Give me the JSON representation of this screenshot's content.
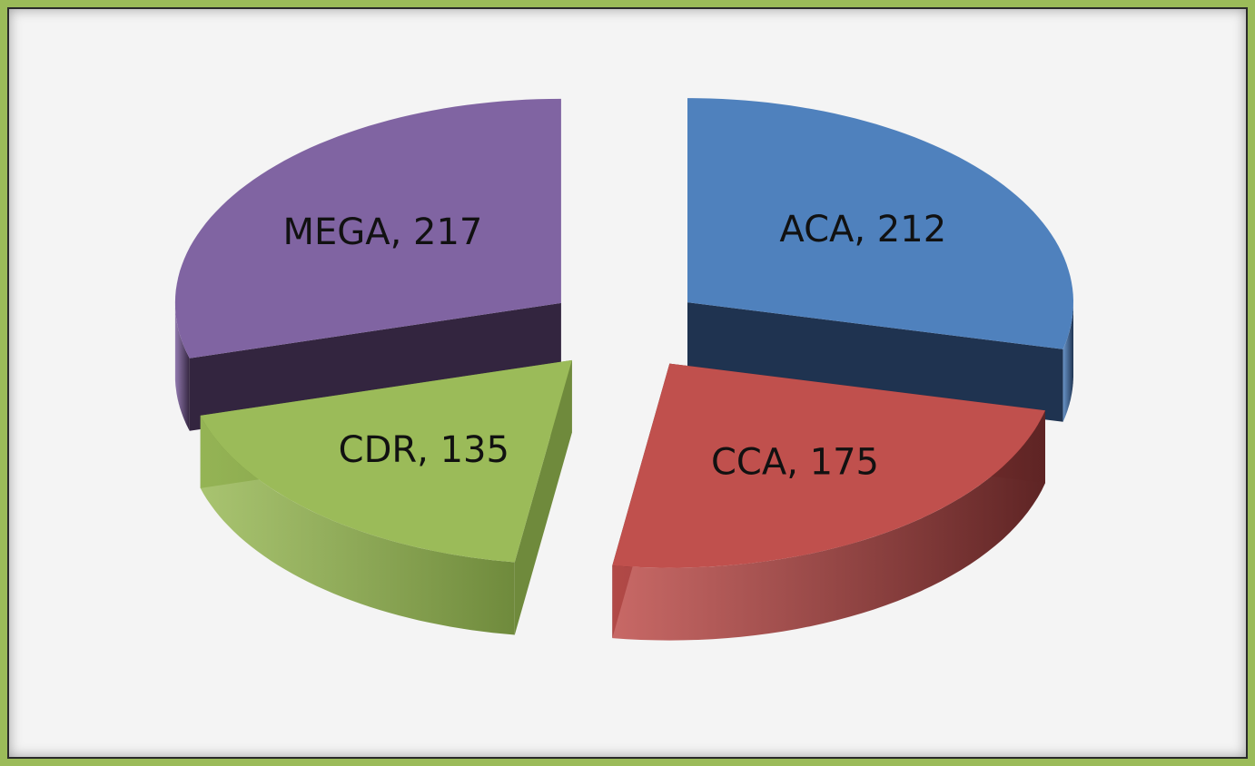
{
  "chart_data": {
    "type": "pie",
    "style": "3d-exploded",
    "title": "",
    "slices": [
      {
        "label": "ACA",
        "value": 212,
        "text": "ACA, 212",
        "color": "#4f81bd",
        "side": "#1f3350"
      },
      {
        "label": "CCA",
        "value": 175,
        "text": "CCA, 175",
        "color": "#c0504d",
        "side": "#5e2424"
      },
      {
        "label": "CDR",
        "value": 135,
        "text": "CDR, 135",
        "color": "#9bbb59",
        "side": "#6f8a3c"
      },
      {
        "label": "MEGA",
        "value": 217,
        "text": "MEGA, 217",
        "color": "#8064a2",
        "side": "#33253f"
      }
    ],
    "legend": "none",
    "data_labels": "category, value"
  },
  "frame": {
    "border_color": "#9bbb59",
    "background": "#f4f4f4"
  }
}
